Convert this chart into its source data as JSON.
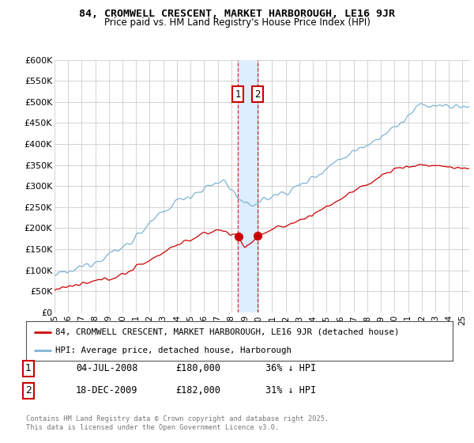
{
  "title": "84, CROMWELL CRESCENT, MARKET HARBOROUGH, LE16 9JR",
  "subtitle": "Price paid vs. HM Land Registry's House Price Index (HPI)",
  "ylabel_ticks": [
    "£0",
    "£50K",
    "£100K",
    "£150K",
    "£200K",
    "£250K",
    "£300K",
    "£350K",
    "£400K",
    "£450K",
    "£500K",
    "£550K",
    "£600K"
  ],
  "ylim": [
    0,
    600000
  ],
  "xlim_start": 1995.0,
  "xlim_end": 2025.5,
  "transaction1": {
    "date": "04-JUL-2008",
    "price": 180000,
    "label": "1",
    "pct": "36% ↓ HPI",
    "year": 2008.5
  },
  "transaction2": {
    "date": "18-DEC-2009",
    "price": 182000,
    "label": "2",
    "pct": "31% ↓ HPI",
    "year": 2009.95
  },
  "legend_property": "84, CROMWELL CRESCENT, MARKET HARBOROUGH, LE16 9JR (detached house)",
  "legend_hpi": "HPI: Average price, detached house, Harborough",
  "copyright": "Contains HM Land Registry data © Crown copyright and database right 2025.\nThis data is licensed under the Open Government Licence v3.0.",
  "line_color_property": "#cc0000",
  "line_color_hpi": "#7fb3d3",
  "marker_box_color": "#cc0000",
  "grid_color": "#cccccc",
  "background_color": "#ffffff",
  "span_color": "#ddeeff"
}
